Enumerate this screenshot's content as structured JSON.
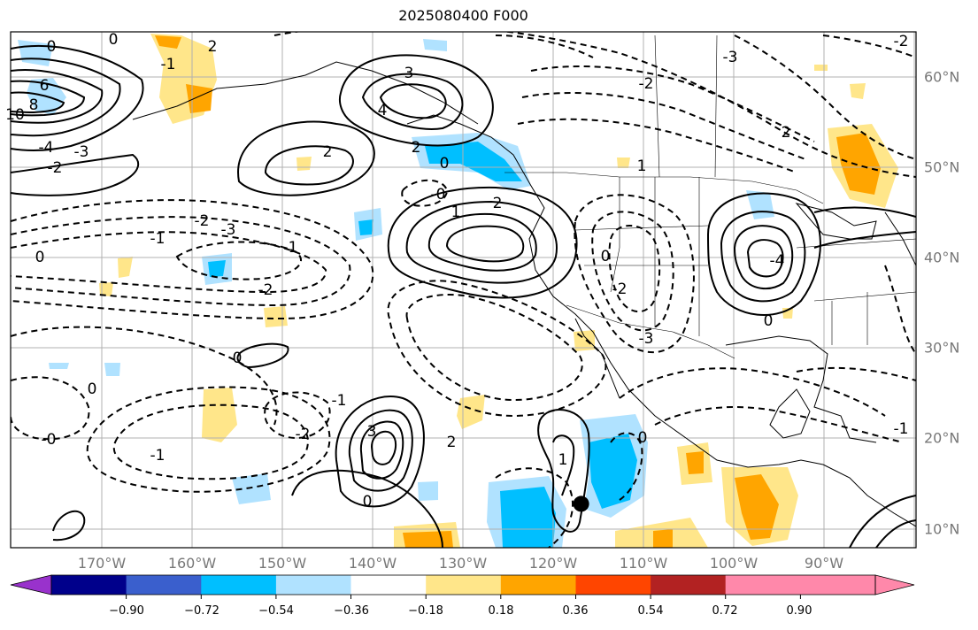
{
  "title": "2025080400 F000",
  "map": {
    "lat_labels": [
      "60°N",
      "50°N",
      "40°N",
      "30°N",
      "20°N",
      "10°N"
    ],
    "lon_labels": [
      "170°W",
      "160°W",
      "150°W",
      "140°W",
      "130°W",
      "120°W",
      "110°W",
      "100°W",
      "90°W"
    ],
    "contour_labels": [
      "0",
      "0",
      "2",
      "-1",
      "6",
      "8",
      "10",
      "-4",
      "-3",
      "-2",
      "3",
      "4",
      "2",
      "2",
      "0",
      "-0",
      "1",
      "2",
      "-1",
      "-2",
      "-3",
      "-1",
      "-2",
      "0",
      "0",
      "0",
      "-0",
      "-1",
      "-2",
      "3",
      "2",
      "1",
      "0",
      "-1",
      "0",
      "-2",
      "-3",
      "0",
      "1",
      "-4",
      "-3",
      "-2",
      "0",
      "-1",
      "2",
      "-2"
    ],
    "marker": {
      "lon": -116.8,
      "lat": 12.8
    }
  },
  "colorbar": {
    "ticks": [
      "−0.90",
      "−0.72",
      "−0.54",
      "−0.36",
      "−0.18",
      "0.18",
      "0.36",
      "0.54",
      "0.72",
      "0.90"
    ],
    "colors": [
      "#9932cc",
      "#00008b",
      "#3a5fcd",
      "#00bfff",
      "#b0e2ff",
      "#ffffff",
      "#ffe68a",
      "#ffa500",
      "#ff4500",
      "#b22222",
      "#ff88aa",
      "#ff88aa"
    ]
  }
}
